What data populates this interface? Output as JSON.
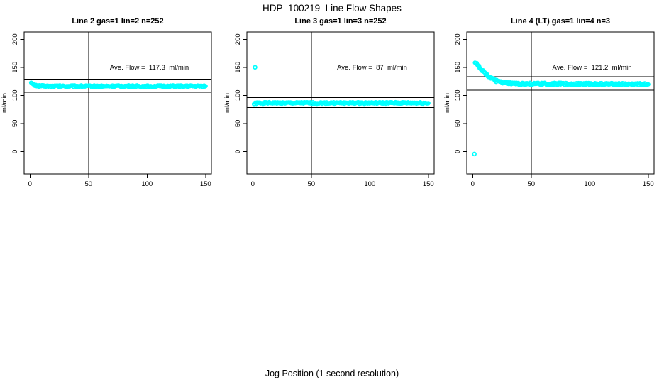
{
  "figure": {
    "title": "HDP_100219  Line Flow Shapes",
    "xlabel": "Jog Position (1 second resolution)",
    "point_color": "#00FFFF",
    "axis_color": "#000000",
    "background_color": "#FFFFFF"
  },
  "chart_data": [
    {
      "type": "scatter",
      "title": "Line 2 gas=1 lin=2 n=252",
      "n": 252,
      "ylabel": "ml/min",
      "ave_flow": 117.3,
      "annotation": {
        "text": "Ave. Flow =  117.3  ml/min",
        "x": 102,
        "y": 150
      },
      "xlim": [
        -5,
        155
      ],
      "ylim": [
        -40,
        213
      ],
      "xticks": [
        0,
        50,
        100,
        150
      ],
      "yticks": [
        0,
        50,
        100,
        150,
        200
      ],
      "vline_x": 50,
      "hlines": [
        129.0,
        105.6
      ],
      "grid": false,
      "outliers": [],
      "trend": [
        [
          1,
          124
        ],
        [
          2,
          120.5
        ],
        [
          3,
          118.6
        ],
        [
          4,
          117.8
        ],
        [
          6,
          117.2
        ],
        [
          9,
          116.8
        ],
        [
          14,
          116.5
        ],
        [
          25,
          116.4
        ],
        [
          40,
          116.5
        ],
        [
          60,
          116.3
        ],
        [
          80,
          116.5
        ],
        [
          100,
          116.3
        ],
        [
          120,
          116.4
        ],
        [
          135,
          116.3
        ],
        [
          150,
          116.5
        ]
      ],
      "band_halfwidth": 1.5,
      "point_step": 0.55
    },
    {
      "type": "scatter",
      "title": "Line 3 gas=1 lin=3 n=252",
      "n": 252,
      "ylabel": "ml/min",
      "ave_flow": 87,
      "annotation": {
        "text": "Ave. Flow =  87  ml/min",
        "x": 102,
        "y": 150
      },
      "xlim": [
        -5,
        155
      ],
      "ylim": [
        -40,
        213
      ],
      "xticks": [
        0,
        50,
        100,
        150
      ],
      "yticks": [
        0,
        50,
        100,
        150,
        200
      ],
      "vline_x": 50,
      "hlines": [
        95.7,
        78.3
      ],
      "grid": false,
      "outliers": [
        [
          2,
          150
        ]
      ],
      "trend": [
        [
          1,
          84.3
        ],
        [
          2,
          85.5
        ],
        [
          4,
          86.2
        ],
        [
          8,
          86.4
        ],
        [
          20,
          86.4
        ],
        [
          40,
          86.3
        ],
        [
          70,
          86.4
        ],
        [
          100,
          86.3
        ],
        [
          130,
          86.4
        ],
        [
          150,
          86.3
        ]
      ],
      "band_halfwidth": 1.5,
      "point_step": 0.55
    },
    {
      "type": "scatter",
      "title": "Line 4 (LT) gas=1 lin=4 n=3",
      "n": 3,
      "ylabel": "ml/min",
      "ave_flow": 121.2,
      "annotation": {
        "text": "Ave. Flow =  121.2  ml/min",
        "x": 102,
        "y": 150
      },
      "xlim": [
        -5,
        155
      ],
      "ylim": [
        -40,
        213
      ],
      "xticks": [
        0,
        50,
        100,
        150
      ],
      "yticks": [
        0,
        50,
        100,
        150,
        200
      ],
      "vline_x": 50,
      "hlines": [
        133.3,
        109.1
      ],
      "grid": false,
      "outliers": [
        [
          1.5,
          -4.5
        ]
      ],
      "trend": [
        [
          2,
          160
        ],
        [
          4,
          155
        ],
        [
          6,
          150
        ],
        [
          8,
          145
        ],
        [
          10,
          141
        ],
        [
          12,
          137
        ],
        [
          14,
          133.5
        ],
        [
          16,
          130.5
        ],
        [
          18,
          128
        ],
        [
          20,
          126
        ],
        [
          23,
          124
        ],
        [
          26,
          122.7
        ],
        [
          30,
          121.7
        ],
        [
          35,
          121
        ],
        [
          42,
          120.7
        ],
        [
          55,
          120.5
        ],
        [
          70,
          120.5
        ],
        [
          85,
          120.4
        ],
        [
          100,
          120.4
        ],
        [
          115,
          120.2
        ],
        [
          130,
          120.1
        ],
        [
          140,
          119.9
        ],
        [
          150,
          119.6
        ]
      ],
      "band_halfwidth": 2.0,
      "point_step": 0.5
    }
  ]
}
